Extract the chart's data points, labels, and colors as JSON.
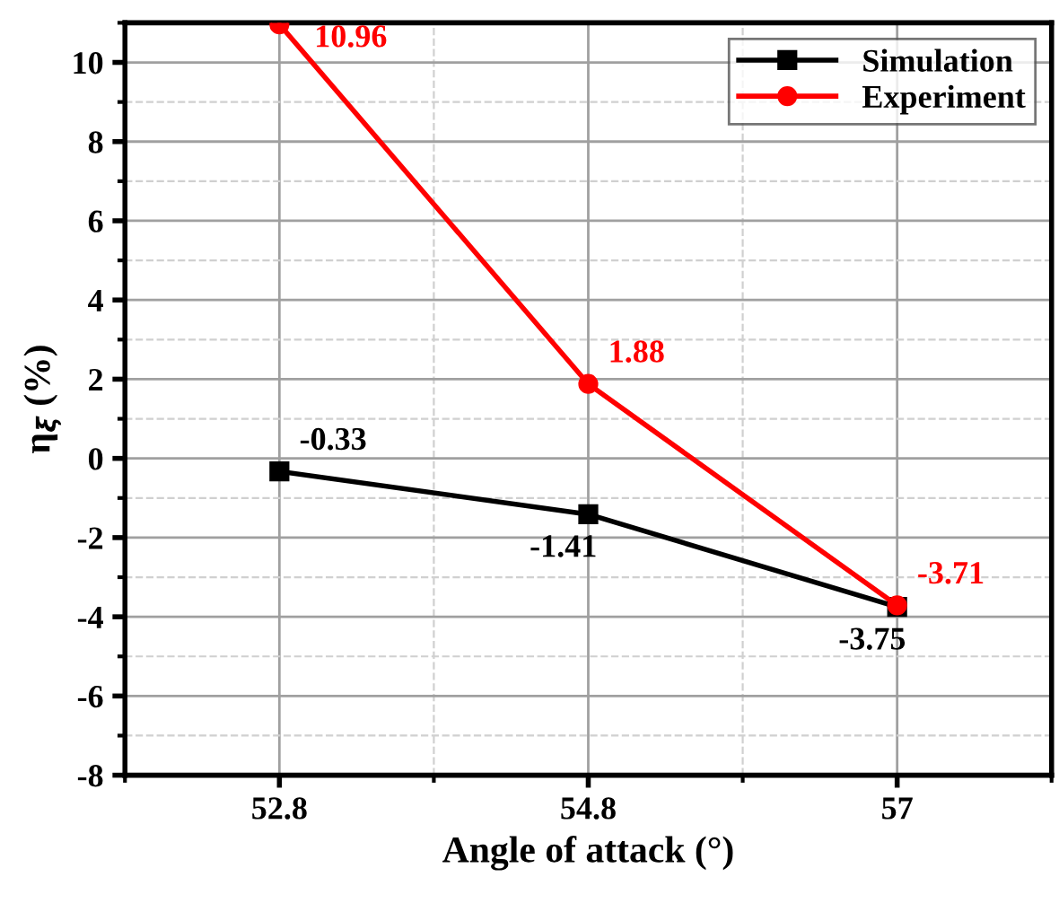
{
  "chart_data": {
    "type": "line",
    "xlabel": "Angle of attack (°)",
    "ylabel": "η$_{ξ}$ (%)",
    "categories": [
      "52.8",
      "54.8",
      "57"
    ],
    "series": [
      {
        "name": "Simulation",
        "color": "#000000",
        "marker": "square",
        "values": [
          -0.33,
          -1.41,
          -3.75
        ]
      },
      {
        "name": "Experiment",
        "color": "#ff0000",
        "marker": "circle",
        "values": [
          10.96,
          1.88,
          -3.71
        ]
      }
    ],
    "ylim": [
      -8,
      11
    ],
    "yticks": [
      -8,
      -6,
      -4,
      -2,
      0,
      2,
      4,
      6,
      8,
      10
    ],
    "grid": true,
    "legend": "top right",
    "data_labels": true,
    "line_style": "solid"
  }
}
